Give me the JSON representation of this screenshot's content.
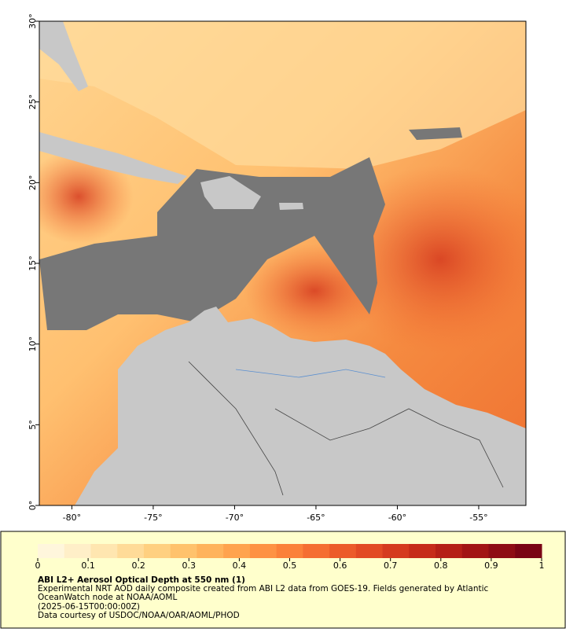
{
  "map": {
    "xlim": [
      -82,
      -52.1
    ],
    "ylim": [
      0,
      30
    ],
    "xticks": [
      {
        "value": -80,
        "label": "-80°"
      },
      {
        "value": -75,
        "label": "-75°"
      },
      {
        "value": -70,
        "label": "-70°"
      },
      {
        "value": -65,
        "label": "-65°"
      },
      {
        "value": -60,
        "label": "-60°"
      },
      {
        "value": -55,
        "label": "-55°"
      }
    ],
    "yticks": [
      {
        "value": 0,
        "label": "0°"
      },
      {
        "value": 5,
        "label": "5°"
      },
      {
        "value": 10,
        "label": "10°"
      },
      {
        "value": 15,
        "label": "15°"
      },
      {
        "value": 20,
        "label": "20°"
      },
      {
        "value": 25,
        "label": "25°"
      },
      {
        "value": 30,
        "label": "30°"
      }
    ]
  },
  "colorbar": {
    "range": [
      0,
      1
    ],
    "ticks": [
      0,
      0.1,
      0.2,
      0.3,
      0.4,
      0.5,
      0.6,
      0.7,
      0.8,
      0.9,
      1
    ],
    "colors": [
      "#fff6dc",
      "#ffefc8",
      "#ffe6b0",
      "#ffdb98",
      "#ffd080",
      "#ffc26c",
      "#ffb35c",
      "#ffa34e",
      "#fe9244",
      "#fb813a",
      "#f56e32",
      "#ec5b2a",
      "#e24a24",
      "#d53a1f",
      "#c62b1a",
      "#b51f17",
      "#a21414",
      "#8e0c14",
      "#7a0414"
    ]
  },
  "caption": {
    "title": "ABI L2+ Aerosol Optical Depth at 550 nm (1)",
    "description": [
      "Experimental NRT AOD daily composite created from ABI L2 data from GOES-19. Fields generated by Atlantic",
      "OceanWatch node at NOAA/AOML"
    ],
    "time": "(2025-06-15T00:00:00Z)",
    "credit": "Data courtesy of USDOC/NOAA/OAR/AOML/PHOD"
  }
}
